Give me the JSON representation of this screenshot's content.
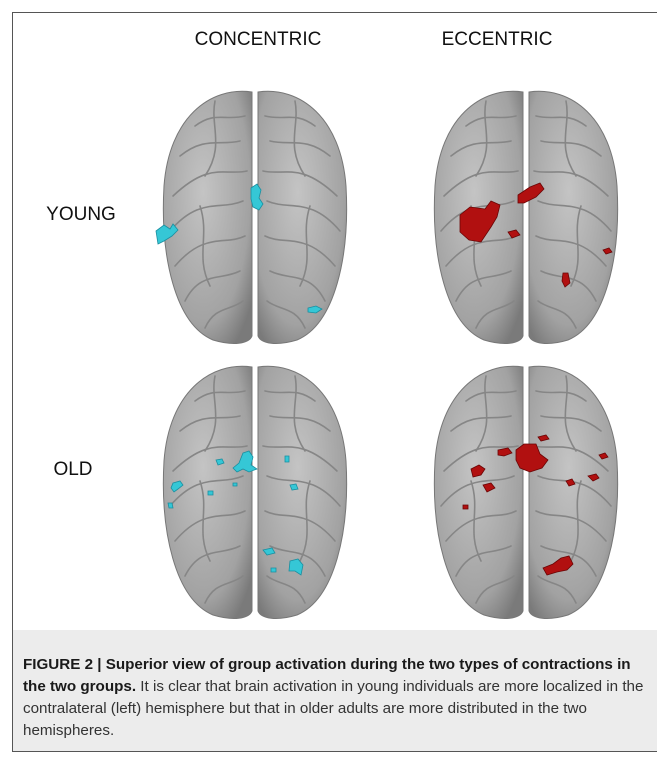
{
  "figure": {
    "column_labels": [
      "CONCENTRIC",
      "ECCENTRIC"
    ],
    "row_labels": [
      "YOUNG",
      "OLD"
    ],
    "caption": {
      "label": "FIGURE 2 | Superior view of group activation during the two types of contractions in the two groups.",
      "text": "It is clear that brain activation in young individuals are more localized in the contralateral (left) hemisphere but that in older adults are more distributed in the two hemispheres."
    }
  }
}
